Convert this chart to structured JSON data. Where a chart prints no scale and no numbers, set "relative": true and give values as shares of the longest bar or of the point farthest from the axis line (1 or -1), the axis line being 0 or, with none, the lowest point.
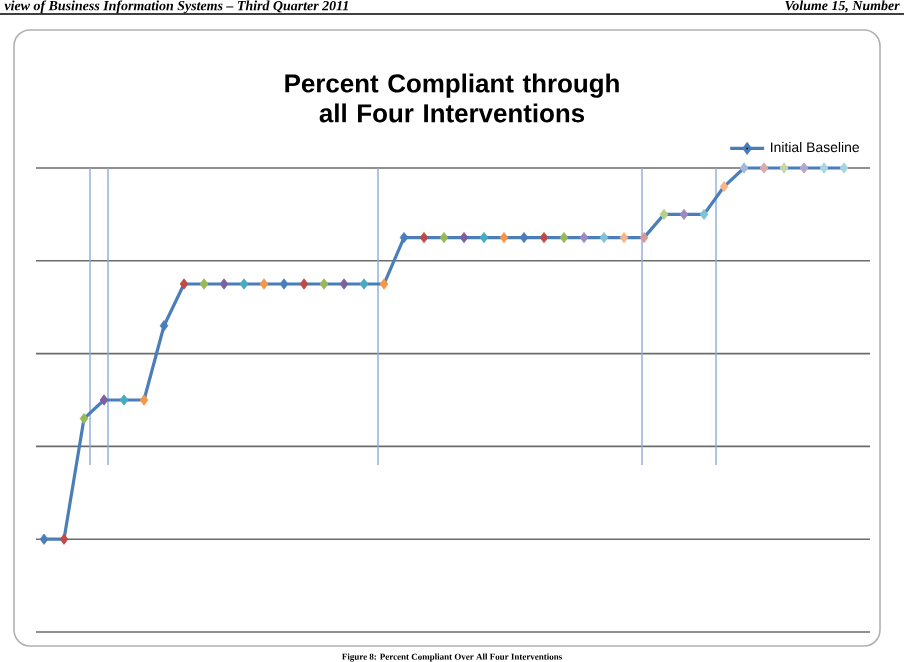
{
  "chart_data": {
    "type": "line",
    "title": "Percent Compliant through all Four Interventions",
    "annotations": [
      "view of Business Information Systems – Third Quarter 2011",
      "Volume 15, Number",
      "Figure 8: Percent Compliant Over All Four Interventions"
    ],
    "relative": true,
    "categories": [
      null,
      null,
      null,
      null,
      null,
      null,
      null,
      null,
      null,
      null,
      null,
      null,
      null,
      null,
      null,
      null,
      null,
      null,
      null,
      null,
      null,
      null,
      null,
      null,
      null,
      null,
      null,
      null,
      null,
      null,
      null,
      null,
      null,
      null,
      null,
      null,
      null,
      null,
      null,
      null,
      null
    ],
    "series": [
      {
        "name": "Initial Baseline",
        "color": "#4a7ebb",
        "values": [
          0.2,
          0.2,
          0.46,
          0.5,
          0.5,
          0.5,
          0.66,
          0.75,
          0.75,
          0.75,
          0.75,
          0.75,
          0.75,
          0.75,
          0.75,
          0.75,
          0.75,
          0.75,
          0.85,
          0.85,
          0.85,
          0.85,
          0.85,
          0.85,
          0.85,
          0.85,
          0.85,
          0.85,
          0.85,
          0.85,
          0.85,
          0.9,
          0.9,
          0.9,
          0.96,
          1,
          1,
          1,
          1,
          1,
          1
        ],
        "colors": [
          "#4a7ebb",
          "#be4b48",
          "#98b954",
          "#7d60a0",
          "#46aac5",
          "#f79646",
          "#4a7ebb",
          "#be4b48",
          "#98b954",
          "#7d60a0",
          "#46aac5",
          "#f79646",
          "#4a7ebb",
          "#be4b48",
          "#98b954",
          "#7d60a0",
          "#46aac5",
          "#f79646",
          "#4a7ebb",
          "#be4b48",
          "#98b954",
          "#7d60a0",
          "#46aac5",
          "#f79646",
          "#4a7ebb",
          "#be4b48",
          "#98b954",
          "#9c8ac0",
          "#7fc3d6",
          "#f9b586",
          "#d59a98",
          "#b8cf8c",
          "#9c8ac0",
          "#7fc3d6",
          "#f9b586",
          "#a3b6dd",
          "#d8aaa9",
          "#c6d8a9",
          "#b3a6ce",
          "#a6d4e2",
          "#a6d4e2"
        ]
      }
    ],
    "grid": "y",
    "legend": "top right",
    "marker": "diamond",
    "line_style": "solid"
  }
}
